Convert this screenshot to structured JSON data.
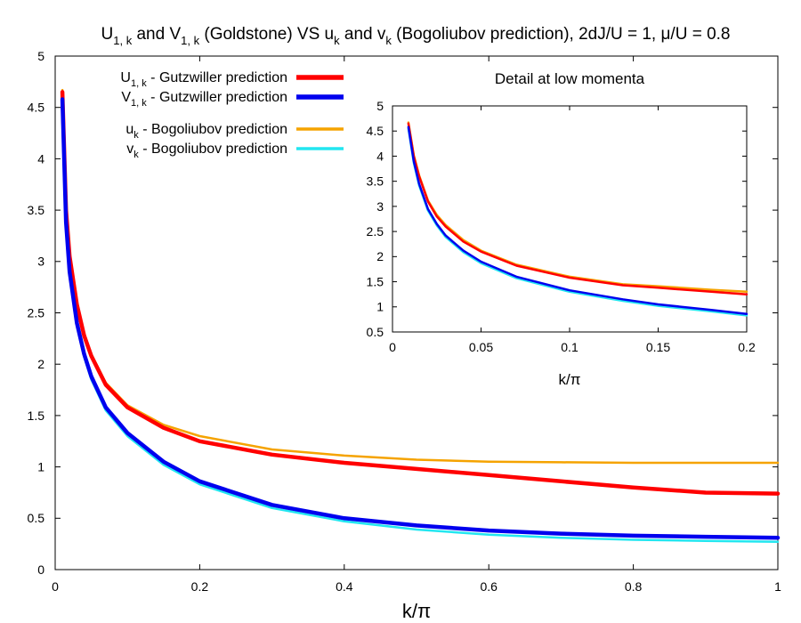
{
  "chart_data": [
    {
      "type": "line",
      "title": {
        "parts": [
          "U",
          "1, k",
          " and V",
          "1, k",
          " (Goldstone) VS u",
          "k",
          " and v",
          "k",
          " (Bogoliubov prediction), 2dJ/U = 1, μ/U = 0.8"
        ]
      },
      "xlabel": "k/π",
      "ylabel": "",
      "xlim": [
        0,
        1
      ],
      "ylim": [
        0,
        5
      ],
      "xticks": [
        0,
        0.2,
        0.4,
        0.6,
        0.8,
        1
      ],
      "xtick_labels": [
        "0",
        "0.2",
        "0.4",
        "0.6",
        "0.8",
        "1"
      ],
      "yticks": [
        0,
        0.5,
        1,
        1.5,
        2,
        2.5,
        3,
        3.5,
        4,
        4.5,
        5
      ],
      "ytick_labels": [
        "0",
        "0.5",
        "1",
        "1.5",
        "2",
        "2.5",
        "3",
        "3.5",
        "4",
        "4.5",
        "5"
      ],
      "legend_position": "top-left",
      "series": [
        {
          "name": "U_1,k - Gutzwiller prediction",
          "legend_parts": [
            "U",
            "1, k",
            " - Gutzwiller prediction"
          ],
          "color": "#ff0000",
          "x": [
            0.01,
            0.015,
            0.02,
            0.03,
            0.04,
            0.05,
            0.07,
            0.1,
            0.15,
            0.2,
            0.3,
            0.4,
            0.5,
            0.6,
            0.7,
            0.8,
            0.9,
            1.0
          ],
          "values": [
            4.65,
            3.5,
            3.05,
            2.58,
            2.28,
            2.08,
            1.8,
            1.58,
            1.38,
            1.25,
            1.12,
            1.04,
            0.98,
            0.92,
            0.86,
            0.8,
            0.75,
            0.74
          ]
        },
        {
          "name": "V_1,k - Gutzwiller prediction",
          "legend_parts": [
            "V",
            "1, k",
            " - Gutzwiller prediction"
          ],
          "color": "#0000ee",
          "x": [
            0.01,
            0.015,
            0.02,
            0.03,
            0.04,
            0.05,
            0.07,
            0.1,
            0.15,
            0.2,
            0.3,
            0.4,
            0.5,
            0.6,
            0.7,
            0.8,
            0.9,
            1.0
          ],
          "values": [
            4.58,
            3.38,
            2.9,
            2.4,
            2.1,
            1.88,
            1.58,
            1.33,
            1.05,
            0.86,
            0.63,
            0.5,
            0.43,
            0.38,
            0.35,
            0.33,
            0.32,
            0.31
          ]
        },
        {
          "name": "u_k - Bogoliubov prediction",
          "legend_parts": [
            "u",
            "k",
            " - Bogoliubov prediction"
          ],
          "color": "#f5a300",
          "x": [
            0.01,
            0.015,
            0.02,
            0.03,
            0.04,
            0.05,
            0.07,
            0.1,
            0.15,
            0.2,
            0.3,
            0.4,
            0.5,
            0.6,
            0.7,
            0.8,
            0.9,
            1.0
          ],
          "values": [
            4.67,
            3.52,
            3.08,
            2.6,
            2.3,
            2.1,
            1.82,
            1.6,
            1.41,
            1.3,
            1.17,
            1.11,
            1.07,
            1.05,
            1.045,
            1.04,
            1.04,
            1.04
          ]
        },
        {
          "name": "v_k - Bogoliubov prediction",
          "legend_parts": [
            "v",
            "k",
            " - Bogoliubov prediction"
          ],
          "color": "#22e6f0",
          "x": [
            0.01,
            0.015,
            0.02,
            0.03,
            0.04,
            0.05,
            0.07,
            0.1,
            0.15,
            0.2,
            0.3,
            0.4,
            0.5,
            0.6,
            0.7,
            0.8,
            0.9,
            1.0
          ],
          "values": [
            4.55,
            3.35,
            2.87,
            2.37,
            2.07,
            1.85,
            1.55,
            1.3,
            1.02,
            0.83,
            0.6,
            0.47,
            0.39,
            0.34,
            0.31,
            0.29,
            0.28,
            0.27
          ]
        }
      ]
    },
    {
      "type": "line",
      "title": "Detail at low momenta",
      "xlabel": "k/π",
      "ylabel": "",
      "xlim": [
        0,
        0.2
      ],
      "ylim": [
        0.5,
        5
      ],
      "xticks": [
        0,
        0.05,
        0.1,
        0.15,
        0.2
      ],
      "xtick_labels": [
        "0",
        "0.05",
        "0.1",
        "0.15",
        "0.2"
      ],
      "yticks": [
        0.5,
        1,
        1.5,
        2,
        2.5,
        3,
        3.5,
        4,
        4.5,
        5
      ],
      "ytick_labels": [
        "0.5",
        "1",
        "1.5",
        "2",
        "2.5",
        "3",
        "3.5",
        "4",
        "4.5",
        "5"
      ],
      "series": [
        {
          "name": "U_1,k",
          "color": "#ff0000",
          "x": [
            0.009,
            0.012,
            0.015,
            0.02,
            0.025,
            0.03,
            0.04,
            0.05,
            0.07,
            0.1,
            0.13,
            0.15,
            0.18,
            0.2
          ],
          "values": [
            4.65,
            4.0,
            3.6,
            3.1,
            2.8,
            2.6,
            2.3,
            2.1,
            1.82,
            1.58,
            1.43,
            1.38,
            1.3,
            1.25
          ]
        },
        {
          "name": "V_1,k",
          "color": "#0000ee",
          "x": [
            0.009,
            0.012,
            0.015,
            0.02,
            0.025,
            0.03,
            0.04,
            0.05,
            0.07,
            0.1,
            0.13,
            0.15,
            0.18,
            0.2
          ],
          "values": [
            4.58,
            3.9,
            3.45,
            2.95,
            2.65,
            2.42,
            2.12,
            1.9,
            1.6,
            1.33,
            1.15,
            1.05,
            0.94,
            0.86
          ]
        },
        {
          "name": "u_k",
          "color": "#f5a300",
          "x": [
            0.009,
            0.012,
            0.015,
            0.02,
            0.025,
            0.03,
            0.04,
            0.05,
            0.07,
            0.1,
            0.13,
            0.15,
            0.18,
            0.2
          ],
          "values": [
            4.67,
            4.02,
            3.62,
            3.12,
            2.83,
            2.63,
            2.33,
            2.12,
            1.84,
            1.6,
            1.45,
            1.41,
            1.34,
            1.3
          ]
        },
        {
          "name": "v_k",
          "color": "#22e6f0",
          "x": [
            0.009,
            0.012,
            0.015,
            0.02,
            0.025,
            0.03,
            0.04,
            0.05,
            0.07,
            0.1,
            0.13,
            0.15,
            0.18,
            0.2
          ],
          "values": [
            4.55,
            3.87,
            3.42,
            2.92,
            2.62,
            2.39,
            2.09,
            1.87,
            1.57,
            1.3,
            1.12,
            1.02,
            0.91,
            0.83
          ]
        }
      ]
    }
  ]
}
